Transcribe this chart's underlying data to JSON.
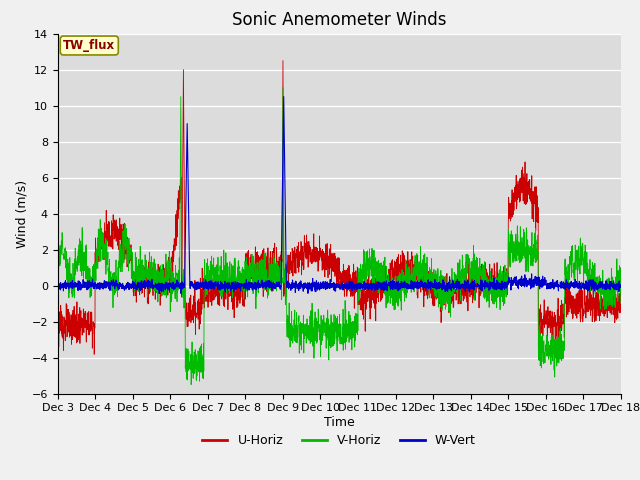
{
  "title": "Sonic Anemometer Winds",
  "xlabel": "Time",
  "ylabel": "Wind (m/s)",
  "ylim": [
    -6,
    14
  ],
  "yticks": [
    -6,
    -4,
    -2,
    0,
    2,
    4,
    6,
    8,
    10,
    12,
    14
  ],
  "xlim": [
    0,
    15
  ],
  "xtick_labels": [
    "Dec 3",
    "Dec 4",
    "Dec 5",
    "Dec 6",
    "Dec 7",
    "Dec 8",
    "Dec 9",
    "Dec 10",
    "Dec 11",
    "Dec 12",
    "Dec 13",
    "Dec 14",
    "Dec 15",
    "Dec 16",
    "Dec 17",
    "Dec 18"
  ],
  "xtick_positions": [
    0,
    1,
    2,
    3,
    4,
    5,
    6,
    7,
    8,
    9,
    10,
    11,
    12,
    13,
    14,
    15
  ],
  "colors": {
    "U": "#cc0000",
    "V": "#00bb00",
    "W": "#0000cc",
    "background": "#dcdcdc",
    "fig_bg": "#f0f0f0"
  },
  "legend_labels": [
    "U-Horiz",
    "V-Horiz",
    "W-Vert"
  ],
  "station_label": "TW_flux",
  "title_fontsize": 12,
  "axis_label_fontsize": 9,
  "tick_fontsize": 8
}
